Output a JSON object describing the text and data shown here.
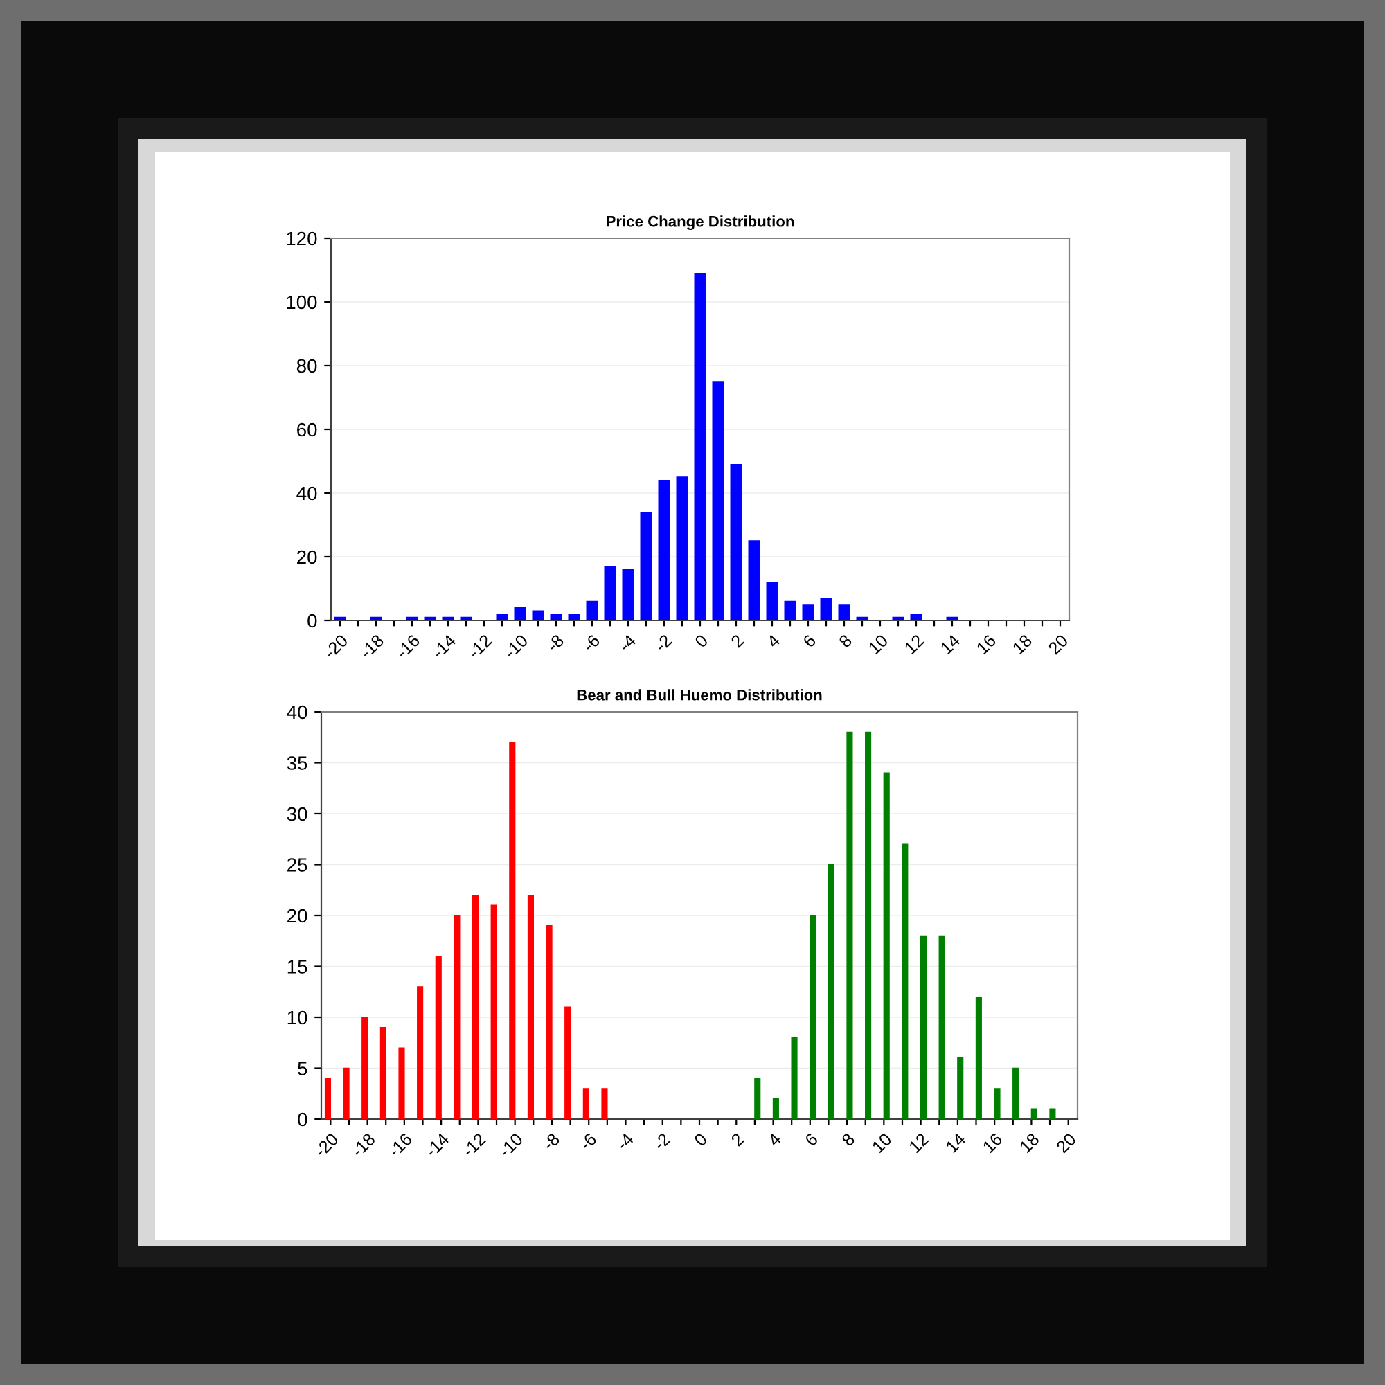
{
  "chart_data": [
    {
      "type": "bar",
      "title": "Price Change Distribution",
      "categories": [
        "-20",
        null,
        "-18",
        null,
        "-16",
        null,
        "-14",
        null,
        "-12",
        null,
        "-10",
        null,
        "-8",
        null,
        "-6",
        null,
        "-4",
        null,
        "-2",
        null,
        "0",
        null,
        "2",
        null,
        "4",
        null,
        "6",
        null,
        "8",
        null,
        "10",
        null,
        "12",
        null,
        "14",
        null,
        "16",
        null,
        "18",
        null,
        "20"
      ],
      "values": [
        1,
        0,
        1,
        0,
        1,
        1,
        1,
        1,
        0,
        2,
        4,
        3,
        2,
        2,
        6,
        17,
        16,
        34,
        44,
        45,
        109,
        75,
        49,
        25,
        12,
        6,
        5,
        7,
        5,
        1,
        0,
        1,
        2,
        0,
        1,
        0,
        0,
        0,
        0,
        0,
        0
      ],
      "color": "#0000ff",
      "ylim": [
        0,
        120
      ],
      "yticks": [
        0,
        20,
        40,
        60,
        80,
        100,
        120
      ],
      "grid": "y"
    },
    {
      "type": "bar",
      "title": "Bear and Bull Huemo Distribution",
      "categories": [
        "-20",
        null,
        "-18",
        null,
        "-16",
        null,
        "-14",
        null,
        "-12",
        null,
        "-10",
        null,
        "-8",
        null,
        "-6",
        null,
        "-4",
        null,
        "-2",
        null,
        "0",
        null,
        "2",
        null,
        "4",
        null,
        "6",
        null,
        "8",
        null,
        "10",
        null,
        "12",
        null,
        "14",
        null,
        "16",
        null,
        "18",
        null,
        "20"
      ],
      "series": [
        {
          "color": "#ff0000",
          "values": [
            4,
            5,
            10,
            9,
            7,
            13,
            16,
            20,
            22,
            21,
            37,
            22,
            19,
            11,
            3,
            3,
            null,
            null,
            null,
            null,
            null,
            null,
            null,
            null,
            null,
            null,
            null,
            null,
            null,
            null,
            null,
            null,
            null,
            null,
            null,
            null,
            null,
            null,
            null,
            null,
            null
          ]
        },
        {
          "color": "#008000",
          "values": [
            null,
            null,
            null,
            null,
            null,
            null,
            null,
            null,
            null,
            null,
            null,
            null,
            null,
            null,
            null,
            null,
            null,
            null,
            null,
            null,
            null,
            null,
            null,
            4,
            2,
            8,
            20,
            25,
            38,
            38,
            34,
            27,
            18,
            18,
            6,
            12,
            3,
            5,
            1,
            1,
            null
          ]
        }
      ],
      "ylim": [
        0,
        40
      ],
      "yticks": [
        0,
        5,
        10,
        15,
        20,
        25,
        30,
        35,
        40
      ],
      "grid": "y"
    }
  ]
}
